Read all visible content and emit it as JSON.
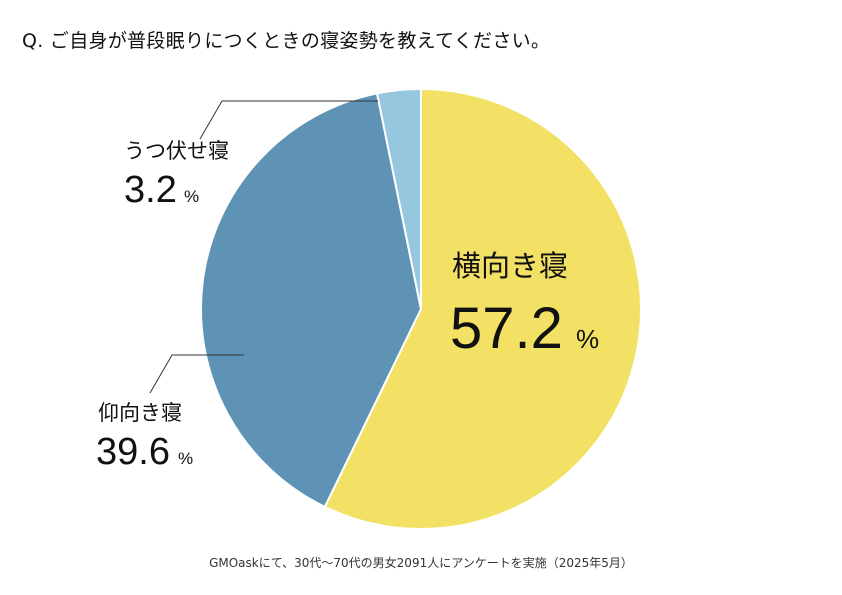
{
  "question": "Q. ご自身が普段眠りにつくときの寝姿勢を教えてください。",
  "source_note": "GMOaskにて、30代〜70代の男女2091人にアンケートを実施（2025年5月）",
  "chart_data": {
    "type": "pie",
    "title": "",
    "unit": "%",
    "start": "12 o'clock, clockwise",
    "series": [
      {
        "name": "横向き寝",
        "value": 57.2,
        "value_text": "57.2",
        "color": "#f2e164"
      },
      {
        "name": "仰向き寝",
        "value": 39.6,
        "value_text": "39.6",
        "color": "#5f93b6"
      },
      {
        "name": "うつ伏せ寝",
        "value": 3.2,
        "value_text": "3.2",
        "color": "#97c6df"
      }
    ]
  }
}
